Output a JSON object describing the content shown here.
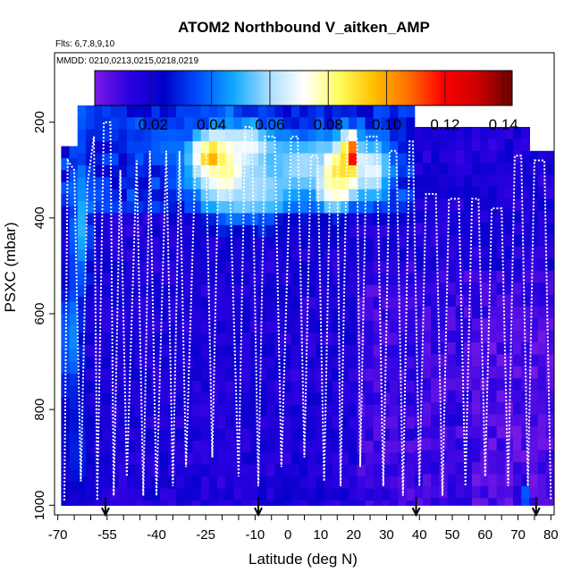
{
  "chart_data": {
    "type": "heatmap",
    "title": "ATOM2 Northbound V_aitken_AMP",
    "subtitle_flights": "Flts: 6,7,8,9,10",
    "subtitle_dates": "MMDD: 0210,0213,0215,0218,0219",
    "xlabel": "Latitude (deg N)",
    "ylabel": "PSXC (mbar)",
    "x_ticks": [
      "-70",
      "-55",
      "-40",
      "-25",
      "-10",
      "0",
      "10",
      "20",
      "30",
      "40",
      "50",
      "60",
      "70",
      "80"
    ],
    "x_tick_values": [
      -70,
      -55,
      -40,
      -25,
      -10,
      0,
      10,
      20,
      30,
      40,
      50,
      60,
      70,
      80
    ],
    "x_minor_step": 5,
    "y_ticks": [
      "200",
      "400",
      "600",
      "800",
      "1000"
    ],
    "y_tick_values": [
      200,
      400,
      600,
      800,
      1000
    ],
    "xlim": [
      -71,
      81
    ],
    "ylim": [
      1020,
      55
    ],
    "colorbar": {
      "ticks": [
        "0.02",
        "0.04",
        "0.06",
        "0.08",
        "0.10",
        "0.12",
        "0.14"
      ],
      "tick_values": [
        0.02,
        0.04,
        0.06,
        0.08,
        0.1,
        0.12,
        0.14
      ],
      "range": [
        0.0,
        0.143
      ],
      "colors": [
        "#7a1ae6",
        "#2a00e0",
        "#0000c8",
        "#0050ff",
        "#10a8ff",
        "#a8ddff",
        "#ffffff",
        "#ffff60",
        "#ffc000",
        "#ff7000",
        "#ff0000",
        "#cc0000",
        "#6a0000"
      ]
    },
    "coverage": {
      "upper_block": {
        "lat": [
          -63,
          37.5
        ],
        "p_top": 165
      },
      "right_block": {
        "lat": [
          37.5,
          74
        ],
        "p_top": 210
      },
      "far_right": {
        "lat": [
          74,
          80
        ],
        "p_top": 260
      },
      "bottom_p": 1000
    },
    "hotspots": [
      {
        "lat": -23,
        "p": 270,
        "v": 0.1,
        "dlat": 6,
        "dp": 40
      },
      {
        "lat": -19,
        "p": 300,
        "v": 0.08,
        "dlat": 9,
        "dp": 80
      },
      {
        "lat": -12,
        "p": 250,
        "v": 0.07,
        "dlat": 8,
        "dp": 40
      },
      {
        "lat": -10,
        "p": 340,
        "v": 0.06,
        "dlat": 12,
        "dp": 70
      },
      {
        "lat": 19,
        "p": 270,
        "v": 0.13,
        "dlat": 2.5,
        "dp": 45
      },
      {
        "lat": 16,
        "p": 300,
        "v": 0.09,
        "dlat": 6,
        "dp": 60
      },
      {
        "lat": 14,
        "p": 330,
        "v": 0.08,
        "dlat": 5,
        "dp": 50
      },
      {
        "lat": 26,
        "p": 300,
        "v": 0.07,
        "dlat": 5,
        "dp": 60
      },
      {
        "lat": 5,
        "p": 290,
        "v": 0.06,
        "dlat": 10,
        "dp": 60
      },
      {
        "lat": -35,
        "p": 250,
        "v": 0.04,
        "dlat": 10,
        "dp": 40
      },
      {
        "lat": -63,
        "p": 420,
        "v": 0.05,
        "dlat": 3,
        "dp": 130
      },
      {
        "lat": -66,
        "p": 650,
        "v": 0.045,
        "dlat": 3,
        "dp": 130
      },
      {
        "lat": -64,
        "p": 880,
        "v": 0.03,
        "dlat": 4,
        "dp": 110
      },
      {
        "lat": 72,
        "p": 980,
        "v": 0.04,
        "dlat": 1.5,
        "dp": 30
      }
    ],
    "track_segments": [
      [
        [
          -68,
          990
        ],
        [
          -67,
          280
        ],
        [
          -65,
          300
        ],
        [
          -63,
          950
        ],
        [
          -61,
          330
        ],
        [
          -59,
          230
        ],
        [
          -58,
          990
        ],
        [
          -56,
          200
        ],
        [
          -54,
          200
        ],
        [
          -53,
          980
        ],
        [
          -51,
          300
        ],
        [
          -49,
          940
        ],
        [
          -46,
          280
        ],
        [
          -44,
          980
        ],
        [
          -42,
          260
        ],
        [
          -40,
          980
        ],
        [
          -37,
          260
        ],
        [
          -35,
          960
        ],
        [
          -33,
          260
        ],
        [
          -31,
          920
        ],
        [
          -28,
          250
        ],
        [
          -25,
          250
        ],
        [
          -23,
          900
        ],
        [
          -21,
          250
        ],
        [
          -18,
          250
        ],
        [
          -15,
          940
        ],
        [
          -13,
          210
        ],
        [
          -11,
          210
        ],
        [
          -9,
          960
        ],
        [
          -7,
          230
        ],
        [
          -4,
          230
        ],
        [
          -2,
          920
        ],
        [
          1,
          230
        ],
        [
          3,
          230
        ],
        [
          5,
          900
        ],
        [
          7,
          270
        ],
        [
          9,
          270
        ],
        [
          11,
          950
        ],
        [
          13,
          270
        ],
        [
          15,
          270
        ],
        [
          16,
          960
        ],
        [
          18,
          230
        ],
        [
          21,
          230
        ],
        [
          22,
          920
        ],
        [
          24,
          230
        ],
        [
          27,
          230
        ],
        [
          29,
          960
        ],
        [
          31,
          260
        ],
        [
          33,
          260
        ],
        [
          35,
          980
        ],
        [
          37,
          240
        ],
        [
          38,
          240
        ],
        [
          40,
          960
        ],
        [
          42,
          350
        ],
        [
          45,
          350
        ],
        [
          47,
          980
        ],
        [
          49,
          360
        ],
        [
          52,
          360
        ],
        [
          54,
          960
        ],
        [
          56,
          360
        ],
        [
          58,
          360
        ],
        [
          60,
          940
        ],
        [
          62,
          380
        ],
        [
          65,
          380
        ],
        [
          67,
          960
        ],
        [
          69,
          270
        ],
        [
          71,
          270
        ],
        [
          73,
          960
        ],
        [
          75,
          280
        ],
        [
          78,
          280
        ],
        [
          80,
          990
        ]
      ]
    ],
    "arrows_lat": [
      -55.5,
      -9,
      39,
      75.5
    ]
  }
}
